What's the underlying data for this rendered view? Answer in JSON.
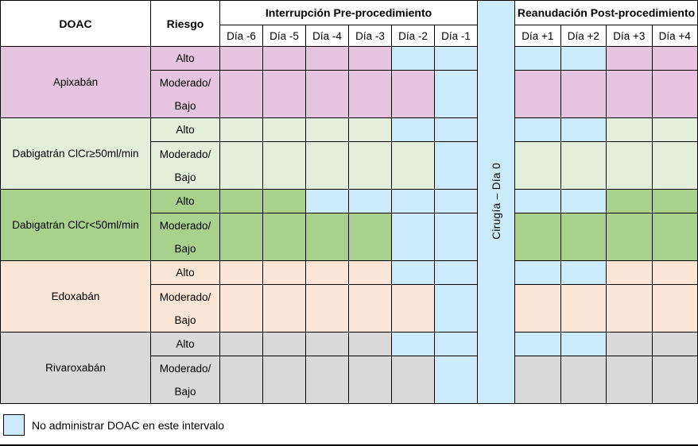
{
  "title_row": {
    "doac": "DOAC",
    "riesgo": "Riesgo",
    "pre_group": "Interrupción Pre-procedimiento",
    "post_group": "Reanudación Post-procedimiento",
    "surgery": "Cirugía – Día 0"
  },
  "day_headers": {
    "pre": [
      "Día -6",
      "Día -5",
      "Día -4",
      "Día -3",
      "Día -2",
      "Día -1"
    ],
    "post": [
      "Día +1",
      "Día +2",
      "Día +3",
      "Día +4"
    ]
  },
  "colors": {
    "no_doac_blue": "#cbebfa",
    "apixaban_pink": "#e6c4e0",
    "dabigatran_clcr_high_green": "#e2efda",
    "dabigatran_clcr_low_green": "#a9d18e",
    "edoxaban_peach": "#fbe5d6",
    "rivaroxaban_gray": "#d9d9d9"
  },
  "drugs": [
    {
      "name": "Apixabán",
      "color": "#e6c4e0",
      "rows": [
        {
          "risk_lines": [
            "Alto"
          ],
          "pre": [
            "dose",
            "dose",
            "dose",
            "dose",
            "hold",
            "hold"
          ],
          "post": [
            "hold",
            "hold",
            "dose",
            "dose"
          ]
        },
        {
          "risk_lines": [
            "Moderado/",
            "Bajo"
          ],
          "pre": [
            "dose",
            "dose",
            "dose",
            "dose",
            "dose",
            "hold"
          ],
          "post": [
            "dose",
            "dose",
            "dose",
            "dose"
          ]
        }
      ]
    },
    {
      "name": "Dabigatrán ClCr≥50ml/min",
      "color": "#e2efda",
      "rows": [
        {
          "risk_lines": [
            "Alto"
          ],
          "pre": [
            "dose",
            "dose",
            "dose",
            "dose",
            "hold",
            "hold"
          ],
          "post": [
            "hold",
            "hold",
            "dose",
            "dose"
          ]
        },
        {
          "risk_lines": [
            "Moderado/",
            "Bajo"
          ],
          "pre": [
            "dose",
            "dose",
            "dose",
            "dose",
            "dose",
            "hold"
          ],
          "post": [
            "dose",
            "dose",
            "dose",
            "dose"
          ]
        }
      ]
    },
    {
      "name": "Dabigatrán ClCr<50ml/min",
      "color": "#a9d18e",
      "rows": [
        {
          "risk_lines": [
            "Alto"
          ],
          "pre": [
            "dose",
            "dose",
            "hold",
            "hold",
            "hold",
            "hold"
          ],
          "post": [
            "hold",
            "hold",
            "dose",
            "dose"
          ]
        },
        {
          "risk_lines": [
            "Moderado/",
            "Bajo"
          ],
          "pre": [
            "dose",
            "dose",
            "dose",
            "dose",
            "hold",
            "hold"
          ],
          "post": [
            "dose",
            "dose",
            "dose",
            "dose"
          ]
        }
      ]
    },
    {
      "name": "Edoxabán",
      "color": "#fbe5d6",
      "rows": [
        {
          "risk_lines": [
            "Alto"
          ],
          "pre": [
            "dose",
            "dose",
            "dose",
            "dose",
            "hold",
            "hold"
          ],
          "post": [
            "hold",
            "hold",
            "dose",
            "dose"
          ]
        },
        {
          "risk_lines": [
            "Moderado/",
            "Bajo"
          ],
          "pre": [
            "dose",
            "dose",
            "dose",
            "dose",
            "dose",
            "hold"
          ],
          "post": [
            "dose",
            "dose",
            "dose",
            "dose"
          ]
        }
      ]
    },
    {
      "name": "Rivaroxabán",
      "color": "#d9d9d9",
      "rows": [
        {
          "risk_lines": [
            "Alto"
          ],
          "pre": [
            "dose",
            "dose",
            "dose",
            "dose",
            "hold",
            "hold"
          ],
          "post": [
            "hold",
            "hold",
            "dose",
            "dose"
          ]
        },
        {
          "risk_lines": [
            "Moderado/",
            "Bajo"
          ],
          "pre": [
            "dose",
            "dose",
            "dose",
            "dose",
            "dose",
            "hold"
          ],
          "post": [
            "dose",
            "dose",
            "dose",
            "dose"
          ]
        }
      ]
    }
  ],
  "legend": {
    "text": "No administrar DOAC en este intervalo"
  }
}
